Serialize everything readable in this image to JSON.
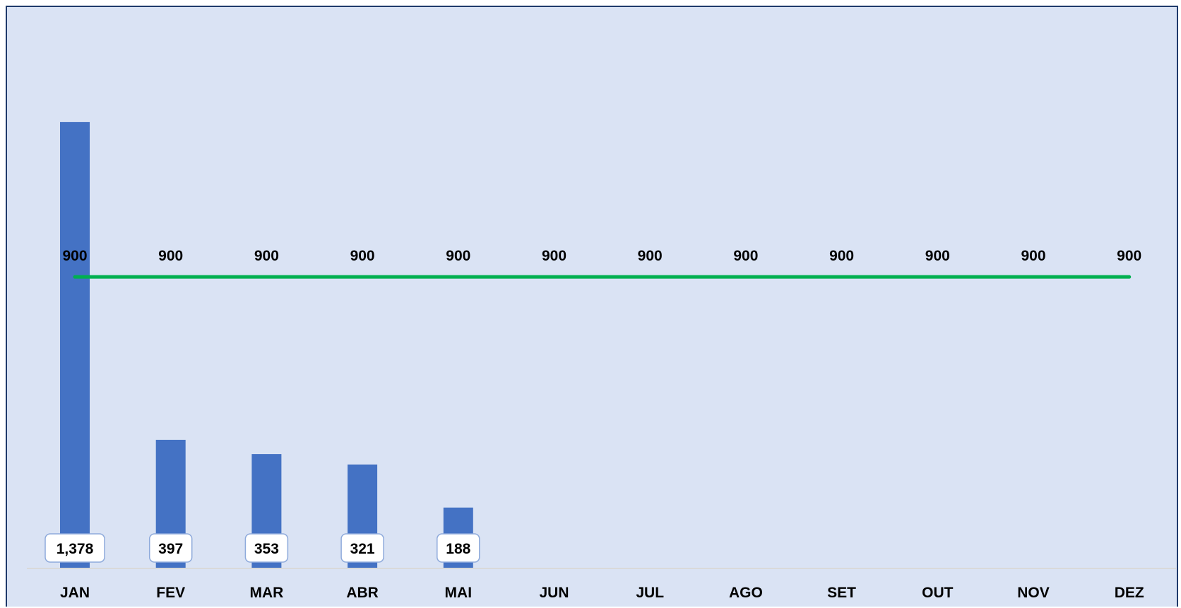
{
  "chart_data": {
    "type": "bar",
    "categories": [
      "JAN",
      "FEV",
      "MAR",
      "ABR",
      "MAI",
      "JUN",
      "JUL",
      "AGO",
      "SET",
      "OUT",
      "NOV",
      "DEZ"
    ],
    "series": [
      {
        "type": "bar",
        "values": [
          1378,
          397,
          353,
          321,
          188,
          null,
          null,
          null,
          null,
          null,
          null,
          null
        ],
        "labels": [
          "1,378",
          "397",
          "353",
          "321",
          "188"
        ],
        "color": "#4472c4"
      },
      {
        "type": "line",
        "values": [
          900,
          900,
          900,
          900,
          900,
          900,
          900,
          900,
          900,
          900,
          900,
          900
        ],
        "labels": [
          "900",
          "900",
          "900",
          "900",
          "900",
          "900",
          "900",
          "900",
          "900",
          "900",
          "900",
          "900"
        ],
        "color": "#00b050"
      }
    ],
    "ylim": [
      0,
      1500
    ],
    "grid": false,
    "legend": "none",
    "title": "",
    "xlabel": "",
    "ylabel": "",
    "background_color": "#dae3f4",
    "axis_line_color": "#d9d9d9",
    "label_border_color": "#8eaadb"
  }
}
